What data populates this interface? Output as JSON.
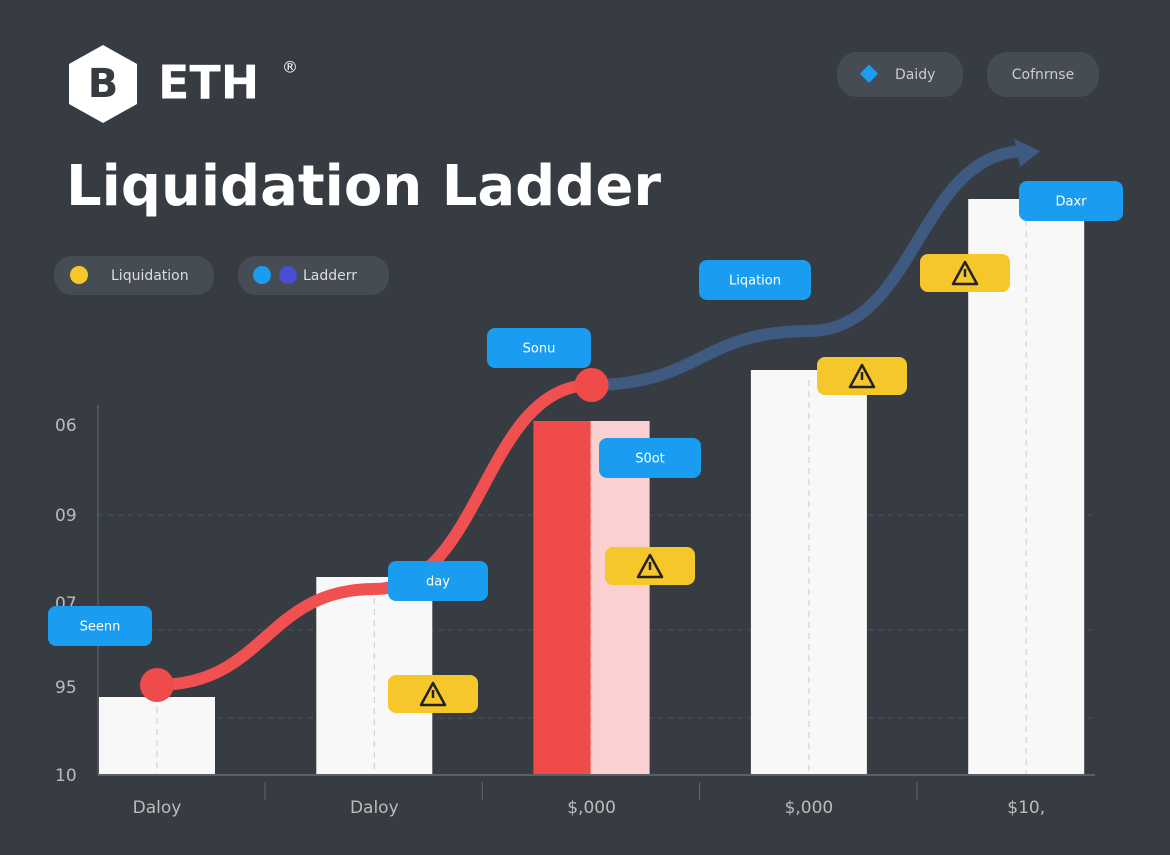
{
  "header": {
    "brand": "ETH",
    "mark": "®",
    "title": "Liquidation Ladder"
  },
  "buttons": [
    "Daidy",
    "Cofnrnse"
  ],
  "legend": [
    "Liquidation",
    "Ladderr"
  ],
  "chart_data": {
    "type": "bar",
    "categories": [
      "Daloy",
      "Daloy",
      "$,000",
      "$,000",
      "$10,"
    ],
    "y_labels": [
      "06",
      "09",
      "07",
      "95",
      "10"
    ],
    "values": [
      13,
      33,
      59,
      67.5,
      96
    ],
    "line_values": [
      15,
      31,
      65,
      74,
      104
    ],
    "ylim": [
      0,
      110
    ],
    "callouts": [
      "Seenn",
      "day",
      "Sonu",
      "S0ot",
      "Liqation",
      "Daxr"
    ]
  }
}
